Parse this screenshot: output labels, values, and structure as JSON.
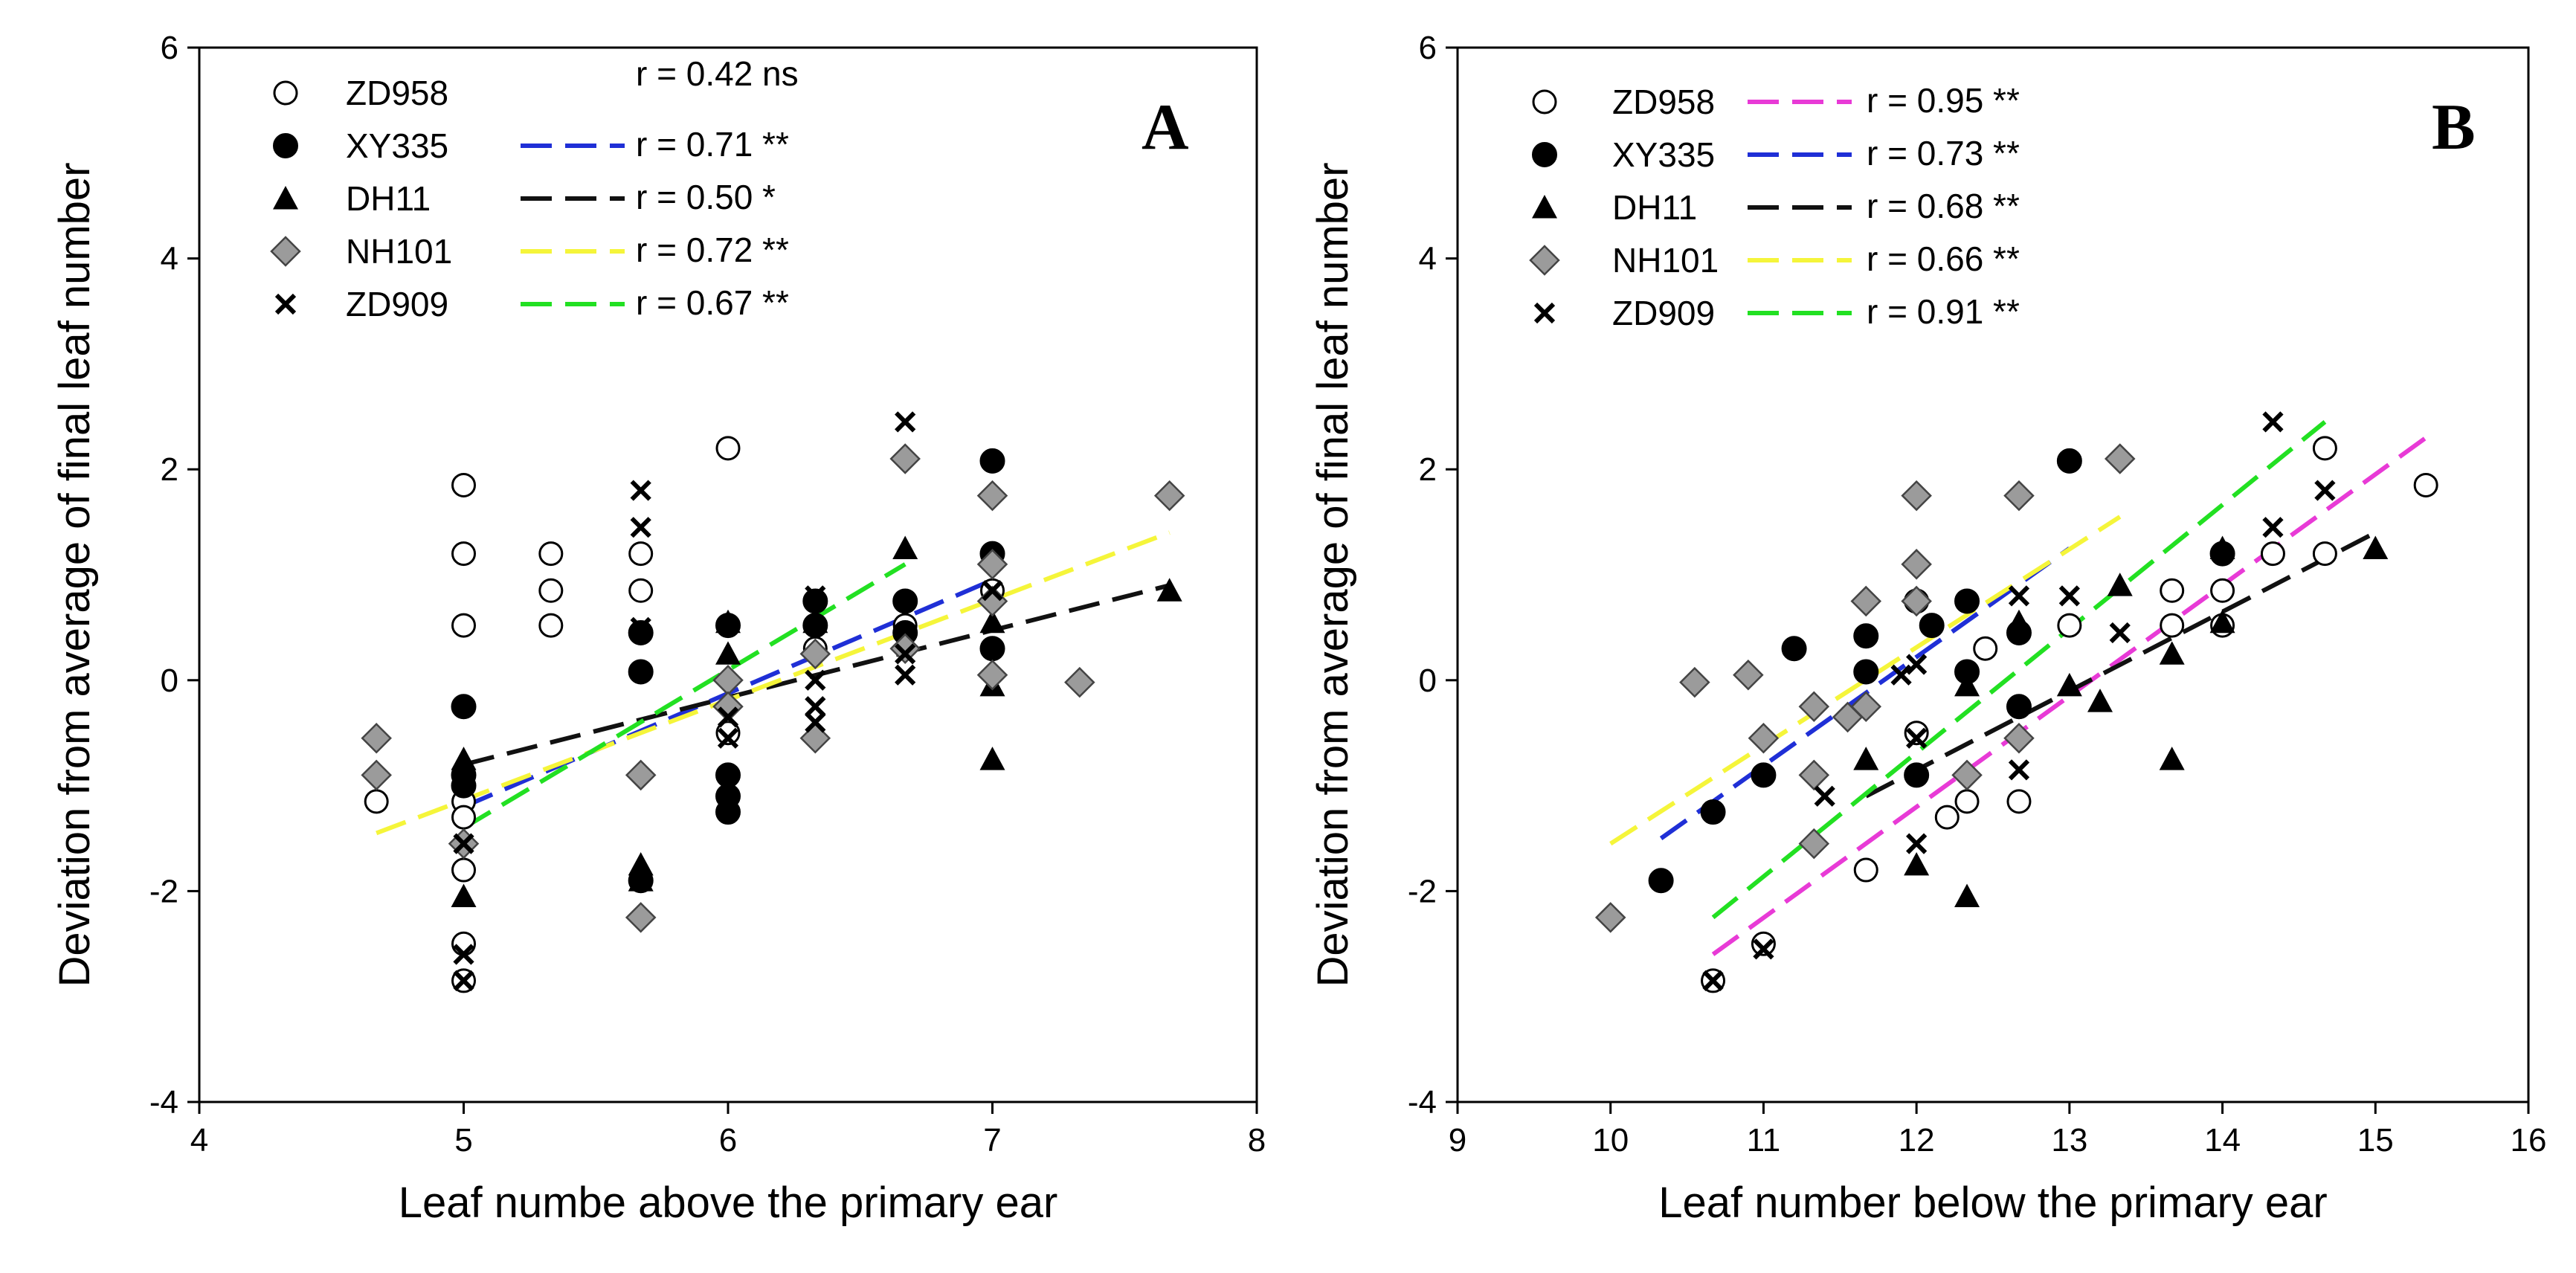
{
  "chart_data": [
    {
      "type": "scatter",
      "panel_label": "A",
      "xlabel": "Leaf numbe above the primary ear",
      "ylabel": "Deviation from average of final leaf number",
      "xlim": [
        4,
        8
      ],
      "ylim": [
        -4,
        6
      ],
      "xticks": [
        4,
        5,
        6,
        7,
        8
      ],
      "yticks": [
        -4,
        -2,
        0,
        2,
        4,
        6
      ],
      "legend_position": "top-left",
      "series": [
        {
          "name": "ZD958",
          "marker": "open-circle",
          "fill": "#ffffff",
          "r_label": "r = 0.42 ns",
          "points": [
            [
              4.67,
              -1.15
            ],
            [
              5,
              1.85
            ],
            [
              5,
              1.2
            ],
            [
              5,
              0.52
            ],
            [
              5,
              -1.15
            ],
            [
              5,
              -1.3
            ],
            [
              5,
              -1.8
            ],
            [
              5,
              -2.5
            ],
            [
              5,
              -2.85
            ],
            [
              5.33,
              1.2
            ],
            [
              5.33,
              0.85
            ],
            [
              5.33,
              0.52
            ],
            [
              5.67,
              1.2
            ],
            [
              5.67,
              0.85
            ],
            [
              6,
              2.2
            ],
            [
              6,
              0.52
            ],
            [
              6,
              -0.5
            ],
            [
              6.33,
              0.3
            ],
            [
              6.67,
              0.52
            ],
            [
              7,
              0.85
            ]
          ]
        },
        {
          "name": "XY335",
          "marker": "filled-circle",
          "fill": "#000000",
          "r_label": "r = 0.71 **",
          "trend": {
            "color": "#1f2fd6",
            "x": [
              5,
              7
            ],
            "y": [
              -1.2,
              0.95
            ]
          },
          "points": [
            [
              5,
              -0.25
            ],
            [
              5,
              -0.9
            ],
            [
              5,
              -1.0
            ],
            [
              5.67,
              0.45
            ],
            [
              5.67,
              0.08
            ],
            [
              5.67,
              -1.9
            ],
            [
              6,
              0.52
            ],
            [
              6,
              -0.9
            ],
            [
              6,
              -1.1
            ],
            [
              6,
              -1.25
            ],
            [
              6.33,
              0.75
            ],
            [
              6.33,
              0.52
            ],
            [
              6.67,
              0.75
            ],
            [
              6.67,
              0.45
            ],
            [
              7,
              2.08
            ],
            [
              7,
              1.2
            ],
            [
              7,
              0.3
            ]
          ]
        },
        {
          "name": "DH11",
          "marker": "filled-triangle",
          "fill": "#000000",
          "r_label": "r = 0.50 *",
          "trend": {
            "color": "#111111",
            "x": [
              5,
              7.67
            ],
            "y": [
              -0.8,
              0.9
            ]
          },
          "points": [
            [
              5,
              -0.75
            ],
            [
              5,
              -2.05
            ],
            [
              5.67,
              -1.75
            ],
            [
              5.67,
              -1.9
            ],
            [
              6,
              0.55
            ],
            [
              6,
              0.25
            ],
            [
              6.33,
              0.55
            ],
            [
              6.67,
              1.25
            ],
            [
              7,
              0.55
            ],
            [
              7,
              -0.05
            ],
            [
              7,
              -0.75
            ],
            [
              7.67,
              0.85
            ]
          ]
        },
        {
          "name": "NH101",
          "marker": "gray-diamond",
          "fill": "#9b9b9b",
          "r_label": "r = 0.72 **",
          "trend": {
            "color": "#f5f53a",
            "x": [
              4.67,
              7.67
            ],
            "y": [
              -1.45,
              1.4
            ]
          },
          "points": [
            [
              4.67,
              -0.55
            ],
            [
              4.67,
              -0.9
            ],
            [
              5,
              -1.55
            ],
            [
              5.67,
              -0.9
            ],
            [
              5.67,
              -2.25
            ],
            [
              6,
              0.0
            ],
            [
              6,
              -0.25
            ],
            [
              6.33,
              0.25
            ],
            [
              6.33,
              -0.55
            ],
            [
              6.67,
              2.1
            ],
            [
              6.67,
              0.3
            ],
            [
              7,
              1.75
            ],
            [
              7,
              1.1
            ],
            [
              7,
              0.75
            ],
            [
              7,
              0.05
            ],
            [
              7.33,
              -0.02
            ],
            [
              7.67,
              1.75
            ]
          ]
        },
        {
          "name": "ZD909",
          "marker": "x-mark",
          "fill": "#000000",
          "r_label": "r = 0.67 **",
          "trend": {
            "color": "#22e022",
            "x": [
              5,
              6.67
            ],
            "y": [
              -1.4,
              1.1
            ]
          },
          "points": [
            [
              5,
              -1.55
            ],
            [
              5,
              -2.6
            ],
            [
              5,
              -2.85
            ],
            [
              5.67,
              1.8
            ],
            [
              5.67,
              1.45
            ],
            [
              5.67,
              0.5
            ],
            [
              6,
              -0.35
            ],
            [
              6,
              -0.55
            ],
            [
              6.33,
              0.8
            ],
            [
              6.33,
              0.0
            ],
            [
              6.33,
              -0.25
            ],
            [
              6.33,
              -0.4
            ],
            [
              6.67,
              2.45
            ],
            [
              6.67,
              0.25
            ],
            [
              6.67,
              0.05
            ],
            [
              7,
              0.85
            ]
          ]
        }
      ]
    },
    {
      "type": "scatter",
      "panel_label": "B",
      "xlabel": "Leaf number below the primary ear",
      "ylabel": "Deviation from average of final leaf number",
      "xlim": [
        9,
        16
      ],
      "ylim": [
        -4,
        6
      ],
      "xticks": [
        9,
        10,
        11,
        12,
        13,
        14,
        15,
        16
      ],
      "yticks": [
        -4,
        -2,
        0,
        2,
        4,
        6
      ],
      "legend_position": "top-left",
      "series": [
        {
          "name": "ZD958",
          "marker": "open-circle",
          "fill": "#ffffff",
          "r_label": "r = 0.95 **",
          "trend": {
            "color": "#e83ad6",
            "x": [
              10.67,
              15.33
            ],
            "y": [
              -2.6,
              2.3
            ]
          },
          "points": [
            [
              10.67,
              -2.85
            ],
            [
              11,
              -2.5
            ],
            [
              11.67,
              -1.8
            ],
            [
              12,
              -0.5
            ],
            [
              12.2,
              -1.3
            ],
            [
              12.33,
              -1.15
            ],
            [
              12.45,
              0.3
            ],
            [
              12.67,
              -1.15
            ],
            [
              13,
              0.52
            ],
            [
              13.67,
              0.85
            ],
            [
              13.67,
              0.52
            ],
            [
              14,
              0.85
            ],
            [
              14,
              0.52
            ],
            [
              14,
              1.2
            ],
            [
              14.33,
              1.2
            ],
            [
              14.67,
              2.2
            ],
            [
              14.67,
              1.2
            ],
            [
              15.33,
              1.85
            ]
          ]
        },
        {
          "name": "XY335",
          "marker": "filled-circle",
          "fill": "#000000",
          "r_label": "r = 0.73 **",
          "trend": {
            "color": "#1f2fd6",
            "x": [
              10.33,
              13
            ],
            "y": [
              -1.5,
              1.25
            ]
          },
          "points": [
            [
              10.33,
              -1.9
            ],
            [
              10.67,
              -1.25
            ],
            [
              11,
              -0.9
            ],
            [
              11.2,
              0.3
            ],
            [
              11.67,
              0.42
            ],
            [
              11.67,
              0.08
            ],
            [
              12,
              0.75
            ],
            [
              12,
              -0.9
            ],
            [
              12.1,
              0.52
            ],
            [
              12.33,
              0.75
            ],
            [
              12.33,
              0.08
            ],
            [
              12.67,
              0.45
            ],
            [
              12.67,
              -0.25
            ],
            [
              13,
              2.08
            ],
            [
              14,
              1.2
            ]
          ]
        },
        {
          "name": "DH11",
          "marker": "filled-triangle",
          "fill": "#000000",
          "r_label": "r = 0.68 **",
          "trend": {
            "color": "#111111",
            "x": [
              11.67,
              15
            ],
            "y": [
              -1.1,
              1.4
            ]
          },
          "points": [
            [
              11.67,
              -0.75
            ],
            [
              12,
              -1.75
            ],
            [
              12.33,
              -0.05
            ],
            [
              12.33,
              -2.05
            ],
            [
              12.67,
              0.55
            ],
            [
              13,
              -0.05
            ],
            [
              13.2,
              -0.2
            ],
            [
              13.33,
              0.9
            ],
            [
              13.67,
              0.25
            ],
            [
              13.67,
              -0.75
            ],
            [
              14,
              0.55
            ],
            [
              14,
              1.25
            ],
            [
              15,
              1.25
            ]
          ]
        },
        {
          "name": "NH101",
          "marker": "gray-diamond",
          "fill": "#9b9b9b",
          "r_label": "r = 0.66 **",
          "trend": {
            "color": "#f5f53a",
            "x": [
              10,
              13.33
            ],
            "y": [
              -1.55,
              1.55
            ]
          },
          "points": [
            [
              10,
              -2.25
            ],
            [
              10.55,
              -0.02
            ],
            [
              10.9,
              0.05
            ],
            [
              11,
              -0.55
            ],
            [
              11.33,
              -0.25
            ],
            [
              11.33,
              -0.9
            ],
            [
              11.33,
              -1.55
            ],
            [
              11.55,
              -0.35
            ],
            [
              11.67,
              0.75
            ],
            [
              11.67,
              -0.25
            ],
            [
              12,
              1.75
            ],
            [
              12,
              1.1
            ],
            [
              12,
              0.75
            ],
            [
              12.67,
              1.75
            ],
            [
              12.67,
              -0.55
            ],
            [
              13.33,
              2.1
            ],
            [
              12.33,
              -0.9
            ]
          ]
        },
        {
          "name": "ZD909",
          "marker": "x-mark",
          "fill": "#000000",
          "r_label": "r = 0.91 **",
          "trend": {
            "color": "#22e022",
            "x": [
              10.67,
              14.67
            ],
            "y": [
              -2.25,
              2.45
            ]
          },
          "points": [
            [
              10.67,
              -2.85
            ],
            [
              11,
              -2.55
            ],
            [
              11.4,
              -1.1
            ],
            [
              11.9,
              0.05
            ],
            [
              12,
              0.15
            ],
            [
              12,
              -0.55
            ],
            [
              12,
              -1.55
            ],
            [
              12.67,
              0.8
            ],
            [
              12.67,
              -0.85
            ],
            [
              13,
              0.8
            ],
            [
              13.33,
              0.45
            ],
            [
              14.33,
              2.45
            ],
            [
              14.33,
              1.45
            ],
            [
              14.67,
              1.8
            ]
          ]
        }
      ]
    }
  ]
}
